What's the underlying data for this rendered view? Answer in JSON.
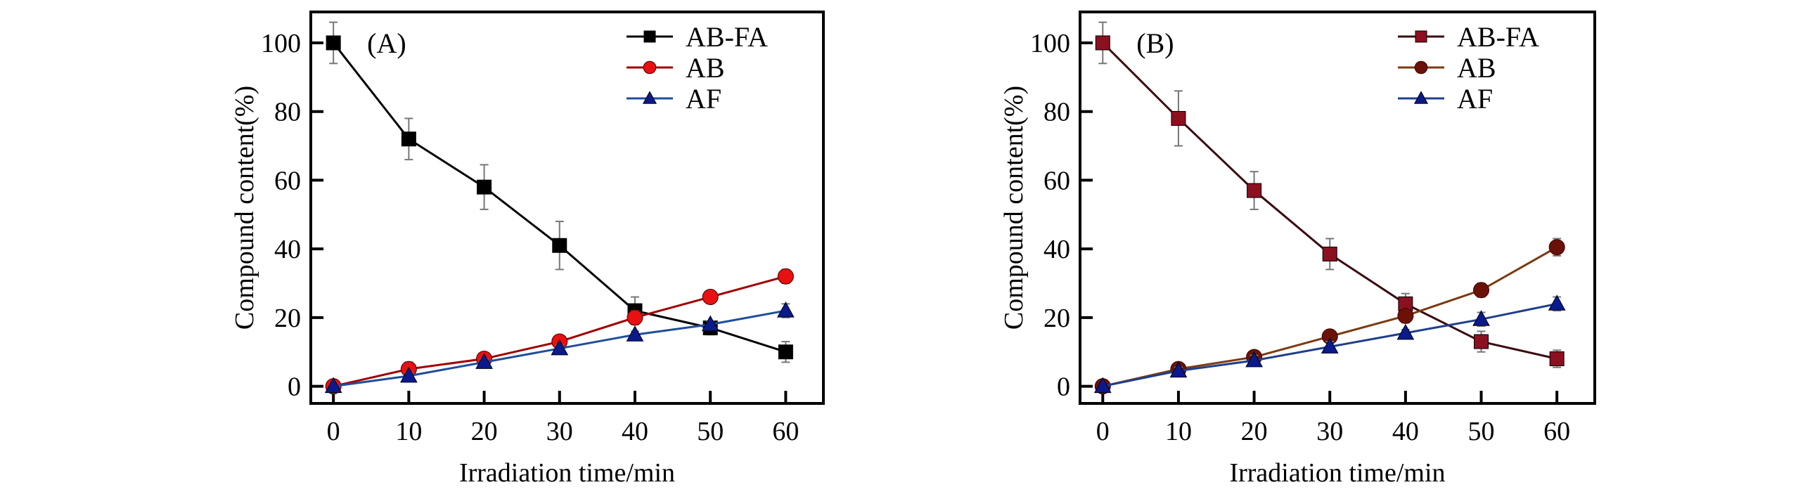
{
  "chart_data": [
    {
      "type": "line",
      "panel_label": "(A)",
      "xlabel": "Irradiation time/min",
      "ylabel": "Compound content(%)",
      "x": [
        0,
        10,
        20,
        30,
        40,
        50,
        60
      ],
      "xticks": [
        0,
        10,
        20,
        30,
        40,
        50,
        60
      ],
      "yticks": [
        0,
        20,
        40,
        60,
        80,
        100
      ],
      "xlim": [
        -3,
        65
      ],
      "ylim": [
        -5,
        109
      ],
      "grid": false,
      "legend": "top-right",
      "series": [
        {
          "name": "AB-FA",
          "marker": "square",
          "color": "#000000",
          "line_color": "#000000",
          "values": [
            100,
            72,
            58,
            41,
            22,
            17,
            10
          ],
          "errors": [
            6,
            6,
            6.5,
            7,
            4,
            2,
            3
          ]
        },
        {
          "name": "AB",
          "marker": "circle",
          "color": "#e81010",
          "line_color": "#a00000",
          "values": [
            0,
            5,
            8,
            13,
            20,
            26,
            32
          ],
          "errors": [
            0,
            2,
            1,
            1,
            2,
            1.5,
            2
          ]
        },
        {
          "name": "AF",
          "marker": "triangle",
          "color": "#0a1a8c",
          "line_color": "#1f4e9c",
          "values": [
            0,
            3,
            7,
            11,
            15,
            18,
            22
          ],
          "errors": [
            0,
            1,
            1,
            1,
            1,
            1,
            2
          ]
        }
      ]
    },
    {
      "type": "line",
      "panel_label": "(B)",
      "xlabel": "Irradiation time/min",
      "ylabel": "Compound content(%)",
      "x": [
        0,
        10,
        20,
        30,
        40,
        50,
        60
      ],
      "xticks": [
        0,
        10,
        20,
        30,
        40,
        50,
        60
      ],
      "yticks": [
        0,
        20,
        40,
        60,
        80,
        100
      ],
      "xlim": [
        -3,
        65
      ],
      "ylim": [
        -5,
        109
      ],
      "grid": false,
      "legend": "top-right",
      "series": [
        {
          "name": "AB-FA",
          "marker": "square",
          "color": "#8b1020",
          "line_color": "#3a0a10",
          "values": [
            100,
            78,
            57,
            38.5,
            24,
            13,
            8
          ],
          "errors": [
            6,
            8,
            5.5,
            4.5,
            3,
            3,
            2.5
          ]
        },
        {
          "name": "AB",
          "marker": "circle",
          "color": "#6a1208",
          "line_color": "#7a3a10",
          "values": [
            0,
            5,
            8.5,
            14.5,
            20.5,
            28,
            40.5
          ],
          "errors": [
            0,
            1,
            1.5,
            1,
            2,
            2,
            2.5
          ]
        },
        {
          "name": "AF",
          "marker": "triangle",
          "color": "#0a1a8c",
          "line_color": "#1f3e8c",
          "values": [
            0,
            4.5,
            7.5,
            11.5,
            15.5,
            19.5,
            24
          ],
          "errors": [
            0,
            1,
            1.5,
            1.5,
            1,
            2,
            2
          ]
        }
      ]
    }
  ]
}
